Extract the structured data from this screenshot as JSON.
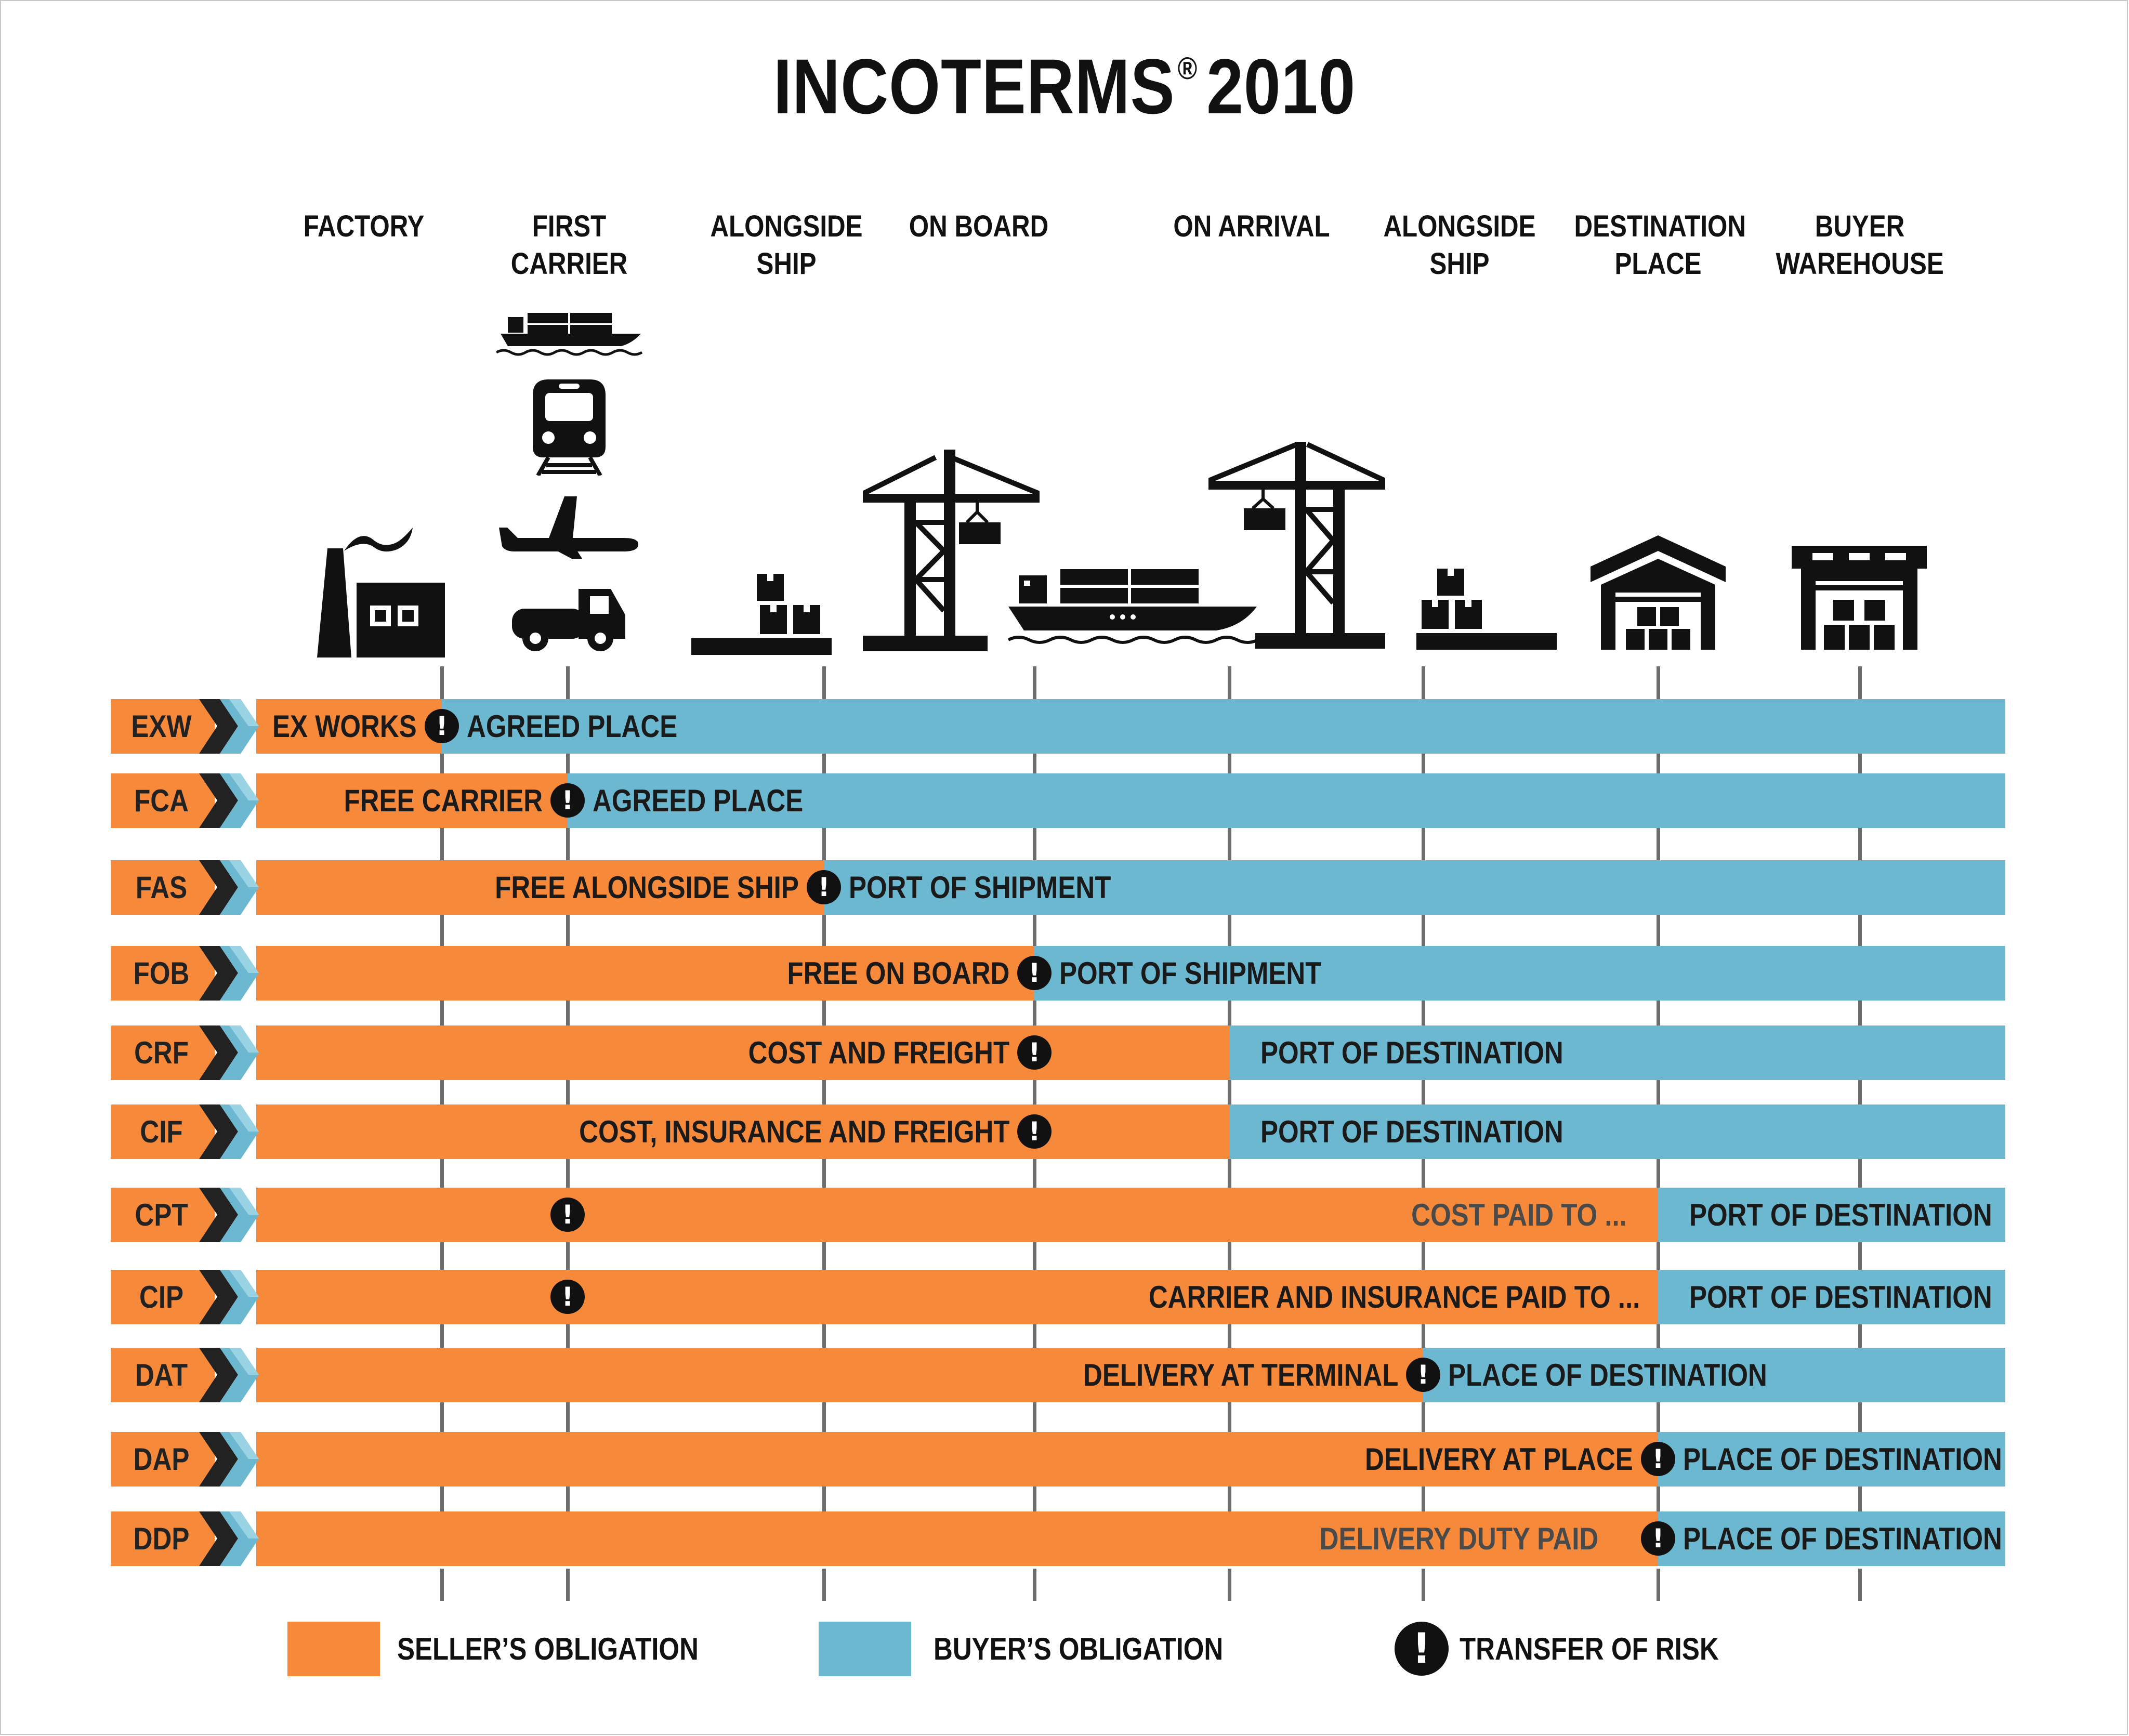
{
  "title": {
    "text": "INCOTERMS",
    "reg": "®",
    "year": "2010"
  },
  "colors": {
    "seller": "#f68a3a",
    "buyer": "#6cb8d0",
    "risk": "#111111"
  },
  "stages": [
    {
      "label": "FACTORY",
      "icon": "factory-icon"
    },
    {
      "label": "FIRST\nCARRIER",
      "icon": "transport-modes-icon"
    },
    {
      "label": "ALONGSIDE\nSHIP",
      "icon": "cargo-pallet-icon"
    },
    {
      "label": "ON BOARD",
      "icon": "port-crane-icon"
    },
    {
      "label": "ON ARRIVAL",
      "icon": "container-ship-icon"
    },
    {
      "label": "ALONGSIDE\nSHIP",
      "icon": "cargo-pallet-icon"
    },
    {
      "label": "DESTINATION\nPLACE",
      "icon": "warehouse-icon"
    },
    {
      "label": "BUYER\nWAREHOUSE",
      "icon": "buyer-warehouse-icon"
    }
  ],
  "terms": [
    {
      "code": "EXW",
      "seller_label": "EX WORKS",
      "buyer_label": "AGREED PLACE",
      "risk_point": "FACTORY"
    },
    {
      "code": "FCA",
      "seller_label": "FREE CARRIER",
      "buyer_label": "AGREED PLACE",
      "risk_point": "FIRST CARRIER"
    },
    {
      "code": "FAS",
      "seller_label": "FREE ALONGSIDE SHIP",
      "buyer_label": "PORT OF SHIPMENT",
      "risk_point": "ALONGSIDE SHIP"
    },
    {
      "code": "FOB",
      "seller_label": "FREE ON BOARD",
      "buyer_label": "PORT OF SHIPMENT",
      "risk_point": "ON BOARD"
    },
    {
      "code": "CRF",
      "seller_label": "COST AND FREIGHT",
      "buyer_label": "PORT OF DESTINATION",
      "risk_point": "ON BOARD"
    },
    {
      "code": "CIF",
      "seller_label": "COST, INSURANCE AND FREIGHT",
      "buyer_label": "PORT OF DESTINATION",
      "risk_point": "ON BOARD"
    },
    {
      "code": "CPT",
      "seller_label": "COST PAID TO ...",
      "buyer_label": "PORT OF DESTINATION",
      "risk_point": "FIRST CARRIER"
    },
    {
      "code": "CIP",
      "seller_label": "CARRIER AND INSURANCE PAID TO ...",
      "buyer_label": "PORT OF DESTINATION",
      "risk_point": "FIRST CARRIER"
    },
    {
      "code": "DAT",
      "seller_label": "DELIVERY AT TERMINAL",
      "buyer_label": "PLACE OF DESTINATION",
      "risk_point": "ALONGSIDE SHIP"
    },
    {
      "code": "DAP",
      "seller_label": "DELIVERY AT PLACE",
      "buyer_label": "PLACE OF DESTINATION",
      "risk_point": "DESTINATION PLACE"
    },
    {
      "code": "DDP",
      "seller_label": "DELIVERY DUTY PAID",
      "buyer_label": "PLACE OF DESTINATION",
      "risk_point": "DESTINATION PLACE"
    }
  ],
  "risk_symbol": "!",
  "legend": {
    "seller": "SELLER’S OBLIGATION",
    "buyer": "BUYER’S OBLIGATION",
    "risk": "TRANSFER OF RISK"
  }
}
